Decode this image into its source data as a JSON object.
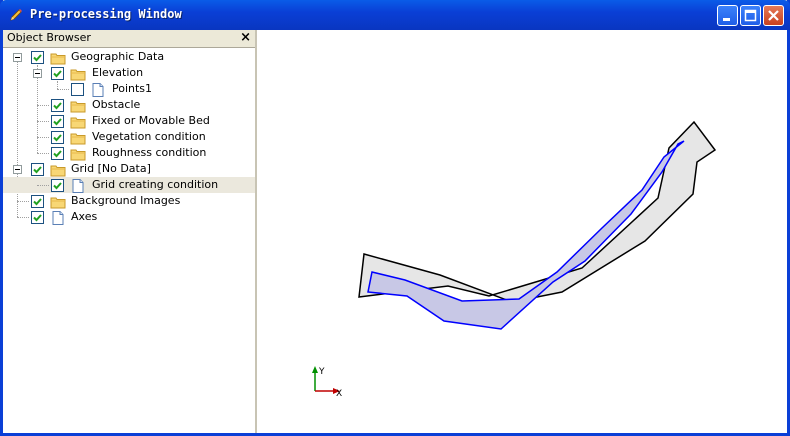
{
  "window": {
    "title": "Pre-processing Window"
  },
  "object_browser": {
    "title": "Object Browser",
    "close_glyph": "×",
    "items": [
      {
        "label": "Geographic Data",
        "icon": "folder-icon",
        "checked": true
      },
      {
        "label": "Elevation",
        "icon": "folder-icon",
        "checked": true
      },
      {
        "label": "Points1",
        "icon": "document-icon",
        "checked": false
      },
      {
        "label": "Obstacle",
        "icon": "folder-icon",
        "checked": true
      },
      {
        "label": "Fixed or Movable Bed",
        "icon": "folder-icon",
        "checked": true
      },
      {
        "label": "Vegetation condition",
        "icon": "folder-icon",
        "checked": true
      },
      {
        "label": "Roughness condition",
        "icon": "folder-icon",
        "checked": true
      },
      {
        "label": "Grid [No Data]",
        "icon": "folder-icon",
        "checked": true
      },
      {
        "label": "Grid creating condition",
        "icon": "document-icon",
        "checked": true,
        "selected": true
      },
      {
        "label": "Background Images",
        "icon": "folder-icon",
        "checked": true
      },
      {
        "label": "Axes",
        "icon": "document-icon",
        "checked": true
      }
    ]
  },
  "axes": {
    "x_label": "X",
    "y_label": "Y",
    "x_color": "#c00000",
    "y_color": "#009000"
  },
  "colors": {
    "region_fill": "#e6e6e6",
    "region_outline": "#000000",
    "inner_fill": "#c8c8e6",
    "inner_outline": "#0000ff"
  }
}
